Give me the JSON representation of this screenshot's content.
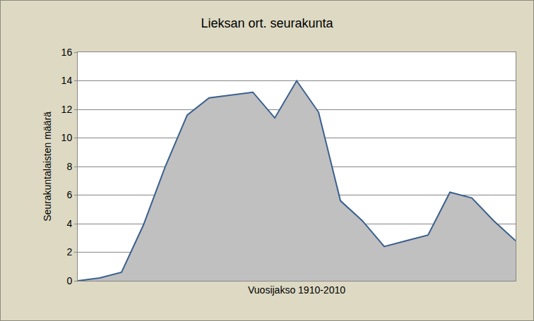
{
  "chart_data": {
    "type": "area",
    "title": "Lieksan ort. seurakunta",
    "x_label": "Vuosijakso 1910-2010",
    "y_label": "Seurakuntalaisten määrä",
    "categories": [
      null,
      null,
      null,
      null,
      null,
      null,
      null,
      null,
      null,
      null,
      null,
      null,
      null,
      null,
      null,
      null,
      null,
      null,
      null,
      null,
      null
    ],
    "values": [
      0,
      0.2,
      0.6,
      3.9,
      8.0,
      11.6,
      12.8,
      13.0,
      13.2,
      11.4,
      14.0,
      11.8,
      5.6,
      4.2,
      2.4,
      2.8,
      3.2,
      6.2,
      5.8,
      4.2,
      2.8
    ],
    "color": "#c0c0c0",
    "ylim": [
      0,
      16
    ],
    "yticks": [
      0,
      2,
      4,
      6,
      8,
      10,
      12,
      14,
      16
    ],
    "grid": true,
    "tick_labels": "y"
  }
}
